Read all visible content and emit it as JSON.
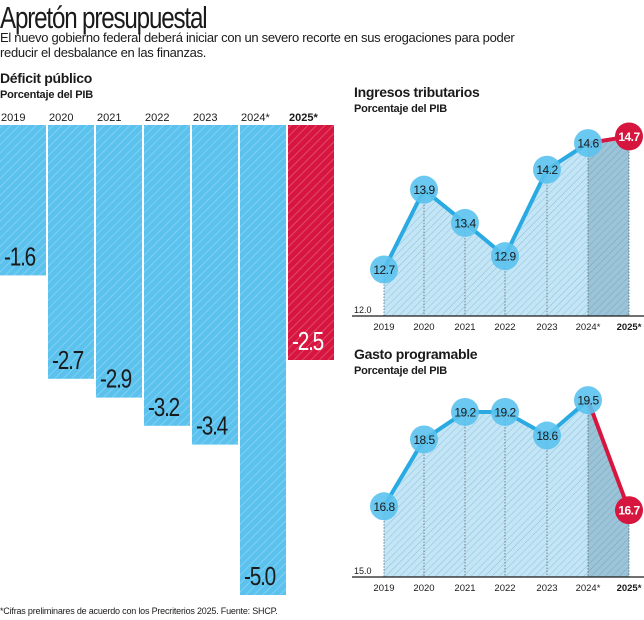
{
  "header": {
    "title": "Apretón presupuestal",
    "description": "El nuevo gobierno federal deberá iniciar con un severo recorte en sus erogaciones para poder reducir el desbalance en las finanzas."
  },
  "footnote": "*Cifras preliminares de acuerdo con los Precriterios 2025. Fuente: SHCP.",
  "colors": {
    "blue": "#5bc2ee",
    "blue_line": "#29aae2",
    "red": "#d7163f",
    "area": "#bfe3f5",
    "area_dark": "#9cc7dc"
  },
  "chart_data": [
    {
      "type": "bar",
      "title": "Déficit público",
      "subtitle": "Porcentaje del PIB",
      "categories": [
        "2019",
        "2020",
        "2021",
        "2022",
        "2023",
        "2024*",
        "2025*"
      ],
      "values": [
        -1.6,
        -2.7,
        -2.9,
        -3.2,
        -3.4,
        -5.0,
        -2.5
      ],
      "labels": [
        "-1.6",
        "-2.7",
        "-2.9",
        "-3.2",
        "-3.4",
        "-5.0",
        "-2.5"
      ],
      "highlight_index": 6,
      "ylim": [
        -5.0,
        0
      ]
    },
    {
      "type": "line",
      "title": "Ingresos tributarios",
      "subtitle": "Porcentaje del PIB",
      "categories": [
        "2019",
        "2020",
        "2021",
        "2022",
        "2023",
        "2024*",
        "2025*"
      ],
      "values": [
        12.7,
        13.9,
        13.4,
        12.9,
        14.2,
        14.6,
        14.7
      ],
      "labels": [
        "12.7",
        "13.9",
        "13.4",
        "12.9",
        "14.2",
        "14.6",
        "14.7"
      ],
      "baseline_label": "12.0",
      "ylim": [
        12.0,
        14.7
      ],
      "highlight_index": 6
    },
    {
      "type": "line",
      "title": "Gasto programable",
      "subtitle": "Porcentaje del PIB",
      "categories": [
        "2019",
        "2020",
        "2021",
        "2022",
        "2023",
        "2024*",
        "2025*"
      ],
      "values": [
        16.8,
        18.5,
        19.2,
        19.2,
        18.6,
        19.5,
        16.7
      ],
      "labels": [
        "16.8",
        "18.5",
        "19.2",
        "19.2",
        "18.6",
        "19.5",
        "16.7"
      ],
      "baseline_label": "15.0",
      "ylim": [
        15.0,
        19.5
      ],
      "highlight_index": 6
    }
  ]
}
